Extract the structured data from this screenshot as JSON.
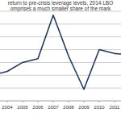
{
  "chart_data": {
    "type": "line",
    "title": [
      "return to pre-crisis leverage levels, 2014 LBO",
      "omprises a much smaller share of the mark"
    ],
    "categories": [
      null,
      "2004",
      "2005",
      "2006",
      "2007",
      "2008",
      "2009",
      "2010",
      "2011",
      null
    ],
    "values": [
      2.0,
      2.3,
      3.0,
      3.3,
      6.7,
      3.5,
      0.9,
      4.0,
      3.7,
      3.6
    ],
    "color": "#1f3864",
    "ylim": [
      0,
      7
    ],
    "yticks": [
      0,
      1,
      2,
      3,
      4,
      5,
      6,
      7
    ],
    "grid": true,
    "tick_labels": "x"
  }
}
